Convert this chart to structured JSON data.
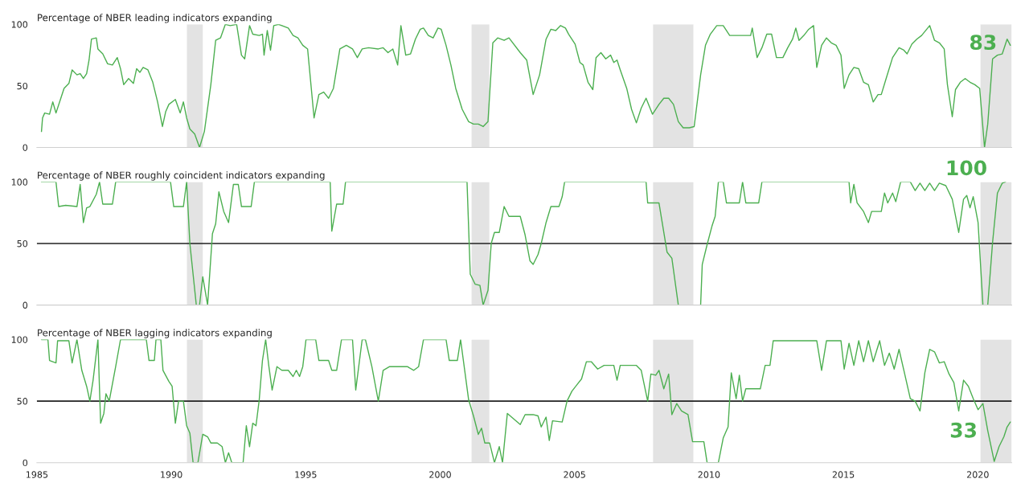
{
  "chart_data": [
    {
      "type": "line",
      "title": "Percentage of NBER leading indicators expanding",
      "tick_labels": "y",
      "grid": false,
      "xlim": [
        1985,
        2021.26
      ],
      "xticks": [
        1985,
        1990,
        1995,
        2000,
        2005,
        2010,
        2015,
        2020
      ],
      "ylim": [
        0,
        100
      ],
      "yticks": [
        0,
        50,
        100
      ],
      "bands": [
        {
          "axis": "x",
          "from": 1990.58,
          "to": 1991.17,
          "color": "#e3e3e3"
        },
        {
          "axis": "x",
          "from": 2001.17,
          "to": 2001.83,
          "color": "#e3e3e3"
        },
        {
          "axis": "x",
          "from": 2007.92,
          "to": 2009.42,
          "color": "#e3e3e3"
        },
        {
          "axis": "x",
          "from": 2020.1,
          "to": 2021.26,
          "color": "#e3e3e3"
        }
      ],
      "annotations": [
        "83"
      ],
      "series": [
        {
          "color": "#4caf50",
          "x": [
            1985.17,
            1985.21,
            1985.29,
            1985.47,
            1985.59,
            1985.71,
            1985.89,
            1986.01,
            1986.19,
            1986.31,
            1986.49,
            1986.61,
            1986.73,
            1986.85,
            1986.94,
            1987.03,
            1987.21,
            1987.27,
            1987.45,
            1987.63,
            1987.81,
            1987.99,
            1988.11,
            1988.23,
            1988.41,
            1988.59,
            1988.71,
            1988.83,
            1988.95,
            1989.13,
            1989.31,
            1989.49,
            1989.67,
            1989.79,
            1989.91,
            1990.15,
            1990.33,
            1990.45,
            1990.57,
            1990.69,
            1990.87,
            1991.05,
            1991.23,
            1991.47,
            1991.65,
            1991.83,
            1992.01,
            1992.19,
            1992.43,
            1992.61,
            1992.73,
            1992.91,
            1993.03,
            1993.27,
            1993.39,
            1993.45,
            1993.57,
            1993.69,
            1993.81,
            1993.99,
            1994.35,
            1994.53,
            1994.71,
            1994.89,
            1995.07,
            1995.31,
            1995.49,
            1995.67,
            1995.85,
            1996.03,
            1996.27,
            1996.51,
            1996.74,
            1996.92,
            1997.1,
            1997.34,
            1997.7,
            1997.88,
            1998.06,
            1998.24,
            1998.42,
            1998.54,
            1998.72,
            1998.9,
            1999.08,
            1999.26,
            1999.38,
            1999.56,
            1999.74,
            1999.92,
            2000.04,
            2000.22,
            2000.4,
            2000.58,
            2000.82,
            2001.06,
            2001.24,
            2001.42,
            2001.6,
            2001.78,
            2001.96,
            2002.14,
            2002.38,
            2002.56,
            2002.98,
            2003.22,
            2003.46,
            2003.7,
            2003.94,
            2004.12,
            2004.3,
            2004.48,
            2004.66,
            2004.78,
            2005.02,
            2005.2,
            2005.32,
            2005.5,
            2005.68,
            2005.8,
            2005.98,
            2006.16,
            2006.34,
            2006.46,
            2006.58,
            2006.7,
            2006.94,
            2007.12,
            2007.3,
            2007.48,
            2007.66,
            2007.9,
            2008.14,
            2008.32,
            2008.5,
            2008.68,
            2008.86,
            2009.04,
            2009.27,
            2009.45,
            2009.69,
            2009.87,
            2010.05,
            2010.29,
            2010.53,
            2010.77,
            2011.13,
            2011.55,
            2011.61,
            2011.79,
            2011.97,
            2012.15,
            2012.33,
            2012.51,
            2012.75,
            2012.93,
            2013.11,
            2013.23,
            2013.35,
            2013.53,
            2013.71,
            2013.89,
            2014.01,
            2014.19,
            2014.37,
            2014.55,
            2014.73,
            2014.91,
            2015.03,
            2015.21,
            2015.39,
            2015.57,
            2015.75,
            2015.93,
            2016.11,
            2016.29,
            2016.41,
            2016.59,
            2016.83,
            2017.07,
            2017.25,
            2017.37,
            2017.55,
            2017.73,
            2017.91,
            2018.21,
            2018.39,
            2018.57,
            2018.75,
            2018.87,
            2019.05,
            2019.17,
            2019.35,
            2019.53,
            2019.71,
            2019.89,
            2020.07,
            2020.25,
            2020.37,
            2020.55,
            2020.73,
            2020.91,
            2021.09,
            2021.21
          ],
          "values": [
            13,
            24,
            28,
            27,
            37,
            28,
            40,
            48,
            52,
            63,
            59,
            60,
            56,
            60,
            71,
            88,
            89,
            80,
            76,
            68,
            67,
            73,
            64,
            51,
            56,
            52,
            64,
            61,
            65,
            63,
            53,
            37,
            17,
            29,
            35,
            39,
            28,
            37,
            24,
            15,
            11,
            0,
            13,
            51,
            87,
            89,
            100,
            99,
            100,
            75,
            72,
            99,
            92,
            91,
            92,
            75,
            95,
            79,
            99,
            100,
            97,
            91,
            89,
            83,
            80,
            24,
            43,
            45,
            40,
            48,
            80,
            83,
            80,
            73,
            80,
            81,
            80,
            81,
            77,
            80,
            67,
            99,
            75,
            76,
            88,
            96,
            97,
            91,
            89,
            97,
            96,
            83,
            67,
            48,
            31,
            21,
            19,
            19,
            17,
            21,
            85,
            89,
            87,
            89,
            77,
            71,
            43,
            59,
            88,
            96,
            95,
            99,
            97,
            92,
            84,
            69,
            67,
            53,
            47,
            73,
            77,
            72,
            75,
            69,
            71,
            63,
            48,
            31,
            20,
            32,
            40,
            27,
            35,
            40,
            40,
            35,
            21,
            16,
            16,
            17,
            59,
            83,
            92,
            99,
            99,
            91,
            91,
            91,
            97,
            73,
            81,
            92,
            92,
            73,
            73,
            81,
            88,
            97,
            87,
            91,
            96,
            99,
            65,
            83,
            89,
            85,
            83,
            75,
            48,
            59,
            65,
            64,
            53,
            51,
            37,
            43,
            43,
            56,
            73,
            81,
            79,
            76,
            84,
            88,
            91,
            99,
            87,
            85,
            80,
            51,
            25,
            47,
            53,
            56,
            53,
            51,
            48,
            0,
            19,
            72,
            75,
            76,
            88,
            83
          ]
        }
      ]
    },
    {
      "type": "line",
      "title": "Percentage of NBER roughly coincident indicators expanding",
      "tick_labels": "y",
      "grid": false,
      "xlim": [
        1985,
        2021.26
      ],
      "xticks": [
        1985,
        1990,
        1995,
        2000,
        2005,
        2010,
        2015,
        2020
      ],
      "ylim": [
        0,
        100
      ],
      "yticks": [
        0,
        50,
        100
      ],
      "ref_lines": [
        {
          "axis": "y",
          "value": 50,
          "color": "#222222"
        }
      ],
      "bands": [
        {
          "axis": "x",
          "from": 1990.58,
          "to": 1991.17,
          "color": "#e3e3e3"
        },
        {
          "axis": "x",
          "from": 2001.17,
          "to": 2001.83,
          "color": "#e3e3e3"
        },
        {
          "axis": "x",
          "from": 2007.92,
          "to": 2009.42,
          "color": "#e3e3e3"
        },
        {
          "axis": "x",
          "from": 2020.1,
          "to": 2021.26,
          "color": "#e3e3e3"
        }
      ],
      "annotations": [
        "100"
      ],
      "series": [
        {
          "color": "#4caf50",
          "x": [
            1985.17,
            1985.71,
            1985.81,
            1986.07,
            1986.49,
            1986.61,
            1986.73,
            1986.85,
            1986.97,
            1987.21,
            1987.33,
            1987.45,
            1987.81,
            1987.93,
            1989.97,
            1990.09,
            1990.45,
            1990.57,
            1990.69,
            1990.93,
            1991.05,
            1991.17,
            1991.35,
            1991.53,
            1991.65,
            1991.77,
            1991.95,
            1992.13,
            1992.31,
            1992.49,
            1992.61,
            1992.97,
            1993.09,
            1995.91,
            1995.97,
            1996.15,
            1996.39,
            1996.48,
            2001.0,
            2001.12,
            2001.3,
            2001.48,
            2001.6,
            2001.78,
            2001.9,
            2002.02,
            2002.2,
            2002.38,
            2002.56,
            2002.98,
            2003.16,
            2003.34,
            2003.46,
            2003.64,
            2003.76,
            2003.94,
            2004.12,
            2004.42,
            2004.54,
            2004.63,
            2007.66,
            2007.72,
            2008.14,
            2008.26,
            2008.44,
            2008.62,
            2008.86,
            2009.69,
            2009.75,
            2009.93,
            2010.11,
            2010.23,
            2010.35,
            2010.53,
            2010.65,
            2011.13,
            2011.25,
            2011.37,
            2011.85,
            2011.97,
            2015.21,
            2015.27,
            2015.39,
            2015.51,
            2015.75,
            2015.93,
            2016.05,
            2016.41,
            2016.53,
            2016.65,
            2016.83,
            2016.95,
            2017.13,
            2017.49,
            2017.67,
            2017.85,
            2018.03,
            2018.21,
            2018.39,
            2018.57,
            2018.81,
            2019.05,
            2019.29,
            2019.47,
            2019.59,
            2019.71,
            2019.83,
            2020.01,
            2020.19,
            2020.37,
            2020.55,
            2020.73,
            2020.91,
            2021.03
          ],
          "values": [
            100,
            100,
            80,
            81,
            80,
            98,
            67,
            79,
            80,
            90,
            100,
            82,
            82,
            100,
            100,
            80,
            80,
            100,
            50,
            0,
            0,
            23,
            0,
            58,
            66,
            92,
            76,
            67,
            98,
            98,
            80,
            80,
            100,
            100,
            60,
            82,
            82,
            100,
            100,
            25,
            17,
            16,
            0,
            12,
            50,
            59,
            59,
            80,
            72,
            72,
            57,
            36,
            33,
            41,
            50,
            67,
            80,
            80,
            88,
            100,
            100,
            83,
            83,
            67,
            43,
            38,
            0,
            0,
            33,
            49,
            64,
            72,
            100,
            100,
            83,
            83,
            100,
            83,
            83,
            100,
            100,
            83,
            98,
            83,
            76,
            67,
            76,
            76,
            91,
            83,
            91,
            84,
            100,
            100,
            93,
            99,
            93,
            99,
            93,
            99,
            97,
            86,
            59,
            86,
            89,
            79,
            88,
            67,
            0,
            0,
            51,
            91,
            99,
            100
          ]
        }
      ]
    },
    {
      "type": "line",
      "title": "Percentage of NBER lagging indicators expanding",
      "grid": false,
      "xlim": [
        1985,
        2021.26
      ],
      "xticks": [
        1985,
        1990,
        1995,
        2000,
        2005,
        2010,
        2015,
        2020
      ],
      "ylim": [
        0,
        100
      ],
      "yticks": [
        0,
        50,
        100
      ],
      "ref_lines": [
        {
          "axis": "y",
          "value": 50,
          "color": "#222222"
        }
      ],
      "bands": [
        {
          "axis": "x",
          "from": 1990.58,
          "to": 1991.17,
          "color": "#e3e3e3"
        },
        {
          "axis": "x",
          "from": 2001.17,
          "to": 2001.83,
          "color": "#e3e3e3"
        },
        {
          "axis": "x",
          "from": 2007.92,
          "to": 2009.42,
          "color": "#e3e3e3"
        },
        {
          "axis": "x",
          "from": 2020.1,
          "to": 2021.26,
          "color": "#e3e3e3"
        }
      ],
      "annotations": [
        "33"
      ],
      "series": [
        {
          "color": "#4caf50",
          "x": [
            1985.17,
            1985.41,
            1985.47,
            1985.71,
            1985.77,
            1986.19,
            1986.31,
            1986.49,
            1986.67,
            1986.85,
            1986.97,
            1987.09,
            1987.27,
            1987.37,
            1987.49,
            1987.57,
            1987.69,
            1987.93,
            1988.11,
            1989.07,
            1989.17,
            1989.37,
            1989.43,
            1989.61,
            1989.69,
            1989.91,
            1990.03,
            1990.15,
            1990.27,
            1990.45,
            1990.57,
            1990.69,
            1990.81,
            1990.99,
            1991.17,
            1991.35,
            1991.47,
            1991.71,
            1991.89,
            1992.01,
            1992.13,
            1992.25,
            1992.67,
            1992.79,
            1992.91,
            1993.03,
            1993.15,
            1993.27,
            1993.39,
            1993.51,
            1993.63,
            1993.75,
            1993.93,
            1994.11,
            1994.35,
            1994.53,
            1994.65,
            1994.77,
            1994.89,
            1995.01,
            1995.37,
            1995.49,
            1995.85,
            1995.97,
            1996.15,
            1996.33,
            1996.74,
            1996.86,
            1997.1,
            1997.22,
            1997.46,
            1997.7,
            1997.88,
            1998.12,
            1998.78,
            1999.02,
            1999.2,
            1999.38,
            2000.22,
            2000.34,
            2000.64,
            2000.76,
            2001.06,
            2001.24,
            2001.42,
            2001.54,
            2001.66,
            2001.84,
            2002.02,
            2002.2,
            2002.32,
            2002.5,
            2002.98,
            2003.16,
            2003.46,
            2003.64,
            2003.76,
            2003.94,
            2004.06,
            2004.18,
            2004.54,
            2004.72,
            2004.9,
            2005.08,
            2005.26,
            2005.44,
            2005.62,
            2005.86,
            2006.1,
            2006.46,
            2006.58,
            2006.7,
            2007.3,
            2007.48,
            2007.72,
            2007.84,
            2008.02,
            2008.14,
            2008.32,
            2008.5,
            2008.62,
            2008.8,
            2008.98,
            2009.22,
            2009.39,
            2009.81,
            2009.93,
            2010.35,
            2010.53,
            2010.71,
            2010.83,
            2011.01,
            2011.13,
            2011.25,
            2011.37,
            2011.91,
            2012.09,
            2012.27,
            2012.39,
            2014.01,
            2014.19,
            2014.37,
            2014.91,
            2015.03,
            2015.21,
            2015.39,
            2015.57,
            2015.75,
            2015.93,
            2016.11,
            2016.35,
            2016.53,
            2016.71,
            2016.89,
            2017.07,
            2017.25,
            2017.49,
            2017.67,
            2017.85,
            2018.03,
            2018.21,
            2018.39,
            2018.57,
            2018.75,
            2018.93,
            2019.11,
            2019.29,
            2019.47,
            2019.65,
            2019.83,
            2020.01,
            2020.19,
            2020.37,
            2020.61,
            2020.79,
            2020.97,
            2021.09,
            2021.21
          ],
          "values": [
            100,
            100,
            83,
            81,
            99,
            99,
            81,
            100,
            75,
            62,
            50,
            67,
            100,
            32,
            40,
            56,
            50,
            78,
            100,
            100,
            83,
            83,
            100,
            100,
            75,
            66,
            62,
            32,
            50,
            50,
            30,
            24,
            0,
            0,
            23,
            21,
            16,
            16,
            13,
            0,
            8,
            0,
            0,
            30,
            13,
            32,
            30,
            51,
            83,
            100,
            78,
            59,
            78,
            75,
            75,
            70,
            75,
            70,
            78,
            100,
            100,
            83,
            83,
            75,
            75,
            100,
            100,
            59,
            100,
            100,
            78,
            50,
            75,
            78,
            78,
            75,
            78,
            100,
            100,
            83,
            83,
            100,
            51,
            38,
            23,
            28,
            16,
            16,
            0,
            13,
            0,
            40,
            31,
            39,
            39,
            38,
            29,
            37,
            18,
            34,
            33,
            50,
            58,
            63,
            68,
            82,
            82,
            76,
            79,
            79,
            67,
            79,
            79,
            75,
            50,
            72,
            71,
            75,
            60,
            72,
            39,
            48,
            42,
            39,
            17,
            17,
            0,
            0,
            20,
            29,
            73,
            52,
            71,
            50,
            60,
            60,
            79,
            79,
            99,
            99,
            75,
            99,
            99,
            76,
            97,
            79,
            99,
            82,
            99,
            82,
            99,
            79,
            89,
            76,
            92,
            75,
            52,
            50,
            42,
            73,
            92,
            90,
            81,
            82,
            72,
            65,
            42,
            67,
            62,
            52,
            43,
            48,
            26,
            1,
            13,
            21,
            29,
            33
          ]
        }
      ]
    }
  ]
}
